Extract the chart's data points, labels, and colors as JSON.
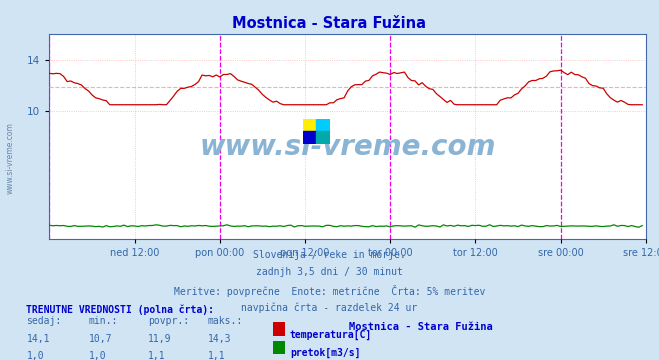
{
  "title": "Mostnica - Stara Fužina",
  "bg_color": "#d0e4f4",
  "plot_bg_color": "#ffffff",
  "grid_color": "#ffb0b0",
  "xlabel_ticks": [
    "ned 12:00",
    "pon 00:00",
    "pon 12:00",
    "tor 00:00",
    "tor 12:00",
    "sre 00:00",
    "sre 12:00"
  ],
  "vline_color": "#ee00ee",
  "avg_hline_color": "#ffaaaa",
  "avg_hline_value": 11.9,
  "ylim": [
    0,
    16.0
  ],
  "yticks": [
    10,
    14
  ],
  "temp_color": "#cc0000",
  "flow_color": "#008800",
  "watermark_text": "www.si-vreme.com",
  "watermark_color": "#8ab4d4",
  "footer_lines": [
    "Slovenija / reke in morje.",
    "zadnjh 3,5 dni / 30 minut",
    "Meritve: povprečne  Enote: metrične  Črta: 5% meritev",
    "navpična črta - razdelek 24 ur"
  ],
  "legend_title": "TRENUTNE VREDNOSTI (polna črta):",
  "legend_headers": [
    "sedaj:",
    "min.:",
    "povpr.:",
    "maks.:"
  ],
  "legend_temp_vals": [
    "14,1",
    "10,7",
    "11,9",
    "14,3"
  ],
  "legend_temp_label": "temperatura[C]",
  "legend_flow_vals": [
    "1,0",
    "1,0",
    "1,1",
    "1,1"
  ],
  "legend_flow_label": "pretok[m3/s]",
  "station_name": "Mostnica - Stara Fužina",
  "sidebar_text": "www.si-vreme.com",
  "sidebar_color": "#6688aa",
  "text_color": "#3366aa",
  "title_color": "#0000cc"
}
